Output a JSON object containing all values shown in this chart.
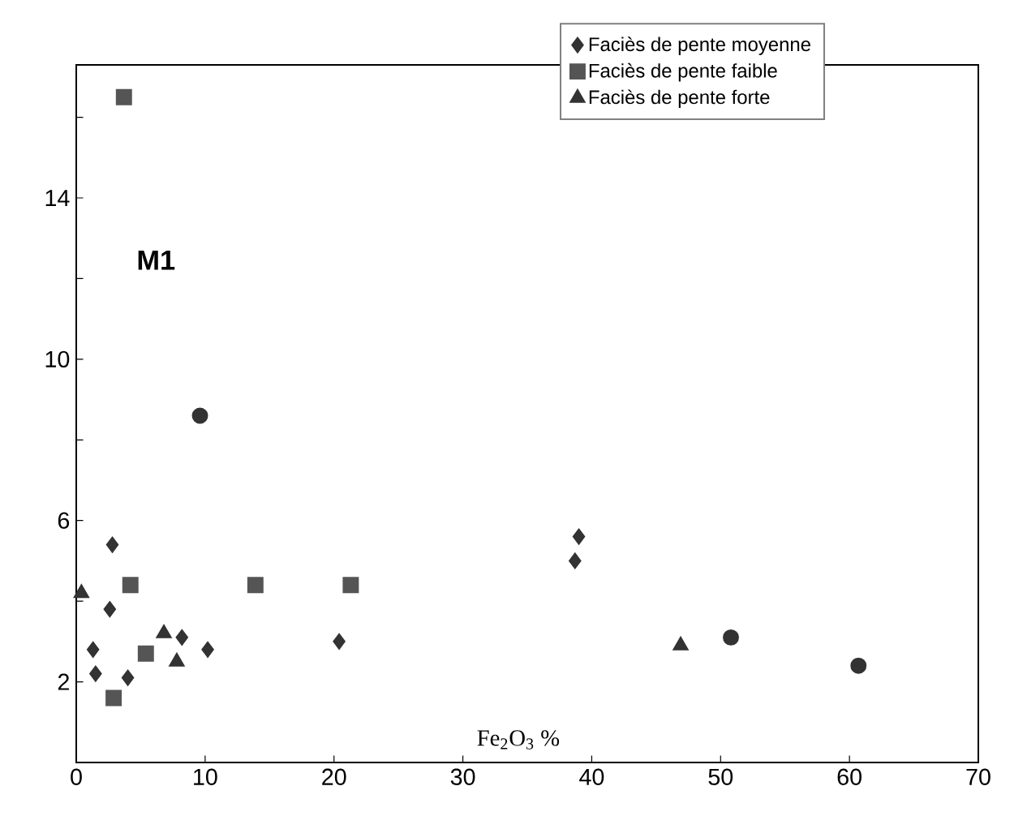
{
  "chart_data": {
    "type": "scatter",
    "xlabel": "Fe$_{2}$O$_{3}$ %",
    "annotations": [
      "M1"
    ],
    "xlim": [
      0,
      70
    ],
    "ylim": [
      0,
      17.3
    ],
    "xticks": [
      0,
      10,
      20,
      30,
      40,
      50,
      60,
      70
    ],
    "yticks": [
      2,
      {
        "value": 4,
        "label": null
      },
      6,
      {
        "value": 8,
        "label": null
      },
      10,
      {
        "value": 12,
        "label": null
      },
      14,
      {
        "value": 16,
        "label": null
      }
    ],
    "grid": false,
    "legend": "top right",
    "series": [
      {
        "name": "Faciès de pente moyenne",
        "marker": "diamond",
        "color": "#333333",
        "x": [
          2.8,
          2.6,
          1.3,
          1.5,
          4.0,
          8.2,
          10.2,
          20.4,
          38.7,
          39.0
        ],
        "values": [
          5.4,
          3.8,
          2.8,
          2.2,
          2.1,
          3.1,
          2.8,
          3.0,
          5.0,
          5.6
        ]
      },
      {
        "name": "Faciès de pente faible",
        "marker": "square",
        "color": "#555555",
        "x": [
          13.9,
          21.3,
          4.2,
          5.4,
          2.9,
          3.7
        ],
        "values": [
          4.4,
          4.4,
          4.4,
          2.7,
          1.6,
          16.5
        ]
      },
      {
        "name": "Faciès de pente forte",
        "marker": "triangle",
        "color": "#333333",
        "x": [
          0.4,
          6.8,
          7.8,
          46.9
        ],
        "values": [
          4.2,
          3.2,
          2.5,
          2.9
        ]
      },
      {
        "marker": "circle",
        "color": "#333333",
        "x": [
          9.6,
          50.8,
          60.7
        ],
        "values": [
          8.6,
          3.1,
          2.4
        ]
      }
    ]
  }
}
